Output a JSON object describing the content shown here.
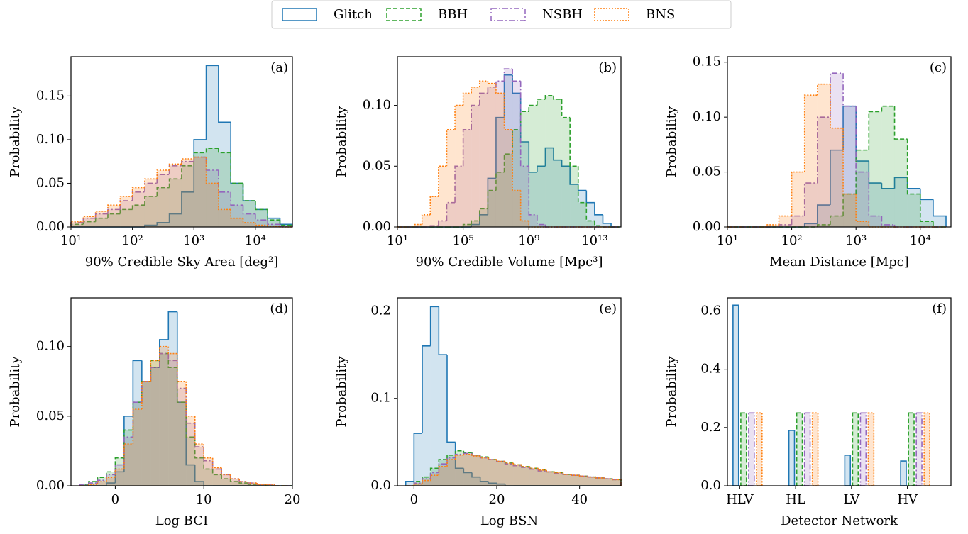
{
  "legend": {
    "entries": [
      {
        "name": "Glitch",
        "color": "#1f77b4",
        "linestyle": "solid"
      },
      {
        "name": "BBH",
        "color": "#2ca02c",
        "linestyle": "dashed"
      },
      {
        "name": "NSBH",
        "color": "#9467bd",
        "linestyle": "dashdot"
      },
      {
        "name": "BNS",
        "color": "#ff7f0e",
        "linestyle": "dotted"
      }
    ]
  },
  "chart_data": [
    {
      "type": "histogram",
      "label": "(a)",
      "xlabel": "90% Credible Sky Area [deg²]",
      "ylabel": "Probability",
      "xscale": "log",
      "bins": [
        10,
        15.85,
        25.12,
        39.81,
        63.1,
        100,
        158.5,
        251.2,
        398.1,
        631,
        1000,
        1585,
        2512,
        3981,
        6310,
        10000,
        15849,
        25119,
        39811
      ],
      "series": [
        {
          "values": [
            0,
            0,
            0,
            0,
            0,
            0,
            0.002,
            0.005,
            0.015,
            0.04,
            0.1,
            0.185,
            0.12,
            0.05,
            0.03,
            0.02,
            0.01,
            0.003
          ]
        },
        {
          "values": [
            0.003,
            0.006,
            0.01,
            0.015,
            0.02,
            0.025,
            0.035,
            0.045,
            0.055,
            0.07,
            0.085,
            0.09,
            0.085,
            0.05,
            0.03,
            0.02,
            0.008,
            0.002
          ]
        },
        {
          "values": [
            0.005,
            0.01,
            0.015,
            0.02,
            0.03,
            0.04,
            0.05,
            0.06,
            0.07,
            0.075,
            0.08,
            0.065,
            0.04,
            0.025,
            0.015,
            0.008,
            0.003,
            0.001
          ]
        },
        {
          "values": [
            0.006,
            0.012,
            0.018,
            0.025,
            0.035,
            0.045,
            0.055,
            0.065,
            0.072,
            0.078,
            0.08,
            0.05,
            0.02,
            0.01,
            0.005,
            0.002,
            0.001,
            0
          ]
        }
      ],
      "xlim": [
        10,
        40000
      ],
      "xticks": [
        {
          "value": 10,
          "label": "10¹"
        },
        {
          "value": 100,
          "label": "10²"
        },
        {
          "value": 1000,
          "label": "10³"
        },
        {
          "value": 10000,
          "label": "10⁴"
        }
      ],
      "ylim": [
        0,
        0.195
      ],
      "yticks": [
        {
          "value": 0,
          "label": "0.00"
        },
        0.05,
        {
          "value": 0.1,
          "label": "0.10"
        },
        0.15
      ]
    },
    {
      "type": "histogram",
      "label": "(b)",
      "xlabel": "90% Credible Volume [Mpc³]",
      "ylabel": "Probability",
      "xscale": "log",
      "bins": [
        10.0,
        31.62,
        100.0,
        316.2,
        1000.0,
        3162.0,
        10000.0,
        31620.0,
        100000.0,
        316200.0,
        1000000.0,
        3162000.0,
        10000000.0,
        31620000.0,
        100000000.0,
        316200000.0,
        1000000000.0,
        3162000000.0,
        10000000000.0,
        31620000000.0,
        100000000000.0,
        316200000000.0,
        1000000000000.0,
        3162000000000.0,
        10000000000000.0,
        31620000000000.0,
        100000000000000.0,
        316200000000000.0
      ],
      "series": [
        {
          "values": [
            0,
            0,
            0,
            0,
            0,
            0,
            0,
            0,
            0,
            0.002,
            0.01,
            0.04,
            0.09,
            0.125,
            0.11,
            0.07,
            0.045,
            0.05,
            0.065,
            0.055,
            0.05,
            0.035,
            0.03,
            0.02,
            0.01,
            0.003,
            0
          ]
        },
        {
          "values": [
            0,
            0,
            0,
            0,
            0,
            0,
            0,
            0,
            0.002,
            0.005,
            0.015,
            0.03,
            0.045,
            0.06,
            0.08,
            0.095,
            0.1,
            0.105,
            0.108,
            0.105,
            0.09,
            0.05,
            0.02,
            0.005,
            0.001,
            0,
            0
          ]
        },
        {
          "values": [
            0,
            0,
            0,
            0,
            0.001,
            0.005,
            0.02,
            0.05,
            0.08,
            0.1,
            0.11,
            0.115,
            0.12,
            0.13,
            0.12,
            0.05,
            0.01,
            0.002,
            0,
            0,
            0,
            0,
            0,
            0,
            0,
            0,
            0
          ]
        },
        {
          "values": [
            0,
            0,
            0.002,
            0.01,
            0.025,
            0.05,
            0.08,
            0.1,
            0.11,
            0.115,
            0.12,
            0.118,
            0.11,
            0.08,
            0.03,
            0.005,
            0,
            0,
            0,
            0,
            0,
            0,
            0,
            0,
            0,
            0,
            0
          ]
        }
      ],
      "xlim": [
        10,
        400000000000000.0
      ],
      "xticks": [
        {
          "value": 10,
          "label": "10¹"
        },
        {
          "value": 100000.0,
          "label": "10⁵"
        },
        {
          "value": 1000000000.0,
          "label": "10⁹"
        },
        {
          "value": 10000000000000.0,
          "label": "10¹³"
        }
      ],
      "ylim": [
        0,
        0.14
      ],
      "yticks": [
        {
          "value": 0,
          "label": "0.00"
        },
        0.05,
        {
          "value": 0.1,
          "label": "0.10"
        }
      ]
    },
    {
      "type": "histogram",
      "label": "(c)",
      "xlabel": "Mean Distance [Mpc]",
      "ylabel": "Probability",
      "xscale": "log",
      "bins": [
        10,
        15.85,
        25.12,
        39.81,
        63.1,
        100,
        158.5,
        251.2,
        398.1,
        631,
        1000,
        1585,
        2512,
        3981,
        6310,
        10000,
        15849,
        25119
      ],
      "series": [
        {
          "values": [
            0,
            0,
            0,
            0,
            0,
            0,
            0.003,
            0.02,
            0.07,
            0.11,
            0.06,
            0.04,
            0.035,
            0.045,
            0.035,
            0.025,
            0.01
          ]
        },
        {
          "values": [
            0,
            0,
            0,
            0,
            0,
            0,
            0,
            0.002,
            0.01,
            0.03,
            0.07,
            0.105,
            0.11,
            0.08,
            0.03,
            0.005,
            0
          ]
        },
        {
          "values": [
            0,
            0,
            0,
            0,
            0.002,
            0.01,
            0.04,
            0.1,
            0.14,
            0.11,
            0.05,
            0.01,
            0.002,
            0,
            0,
            0,
            0
          ]
        },
        {
          "values": [
            0,
            0,
            0,
            0.002,
            0.01,
            0.05,
            0.12,
            0.13,
            0.09,
            0.03,
            0.005,
            0,
            0,
            0,
            0,
            0,
            0
          ]
        }
      ],
      "xlim": [
        10,
        30000
      ],
      "xticks": [
        {
          "value": 10,
          "label": "10¹"
        },
        {
          "value": 100,
          "label": "10²"
        },
        {
          "value": 1000,
          "label": "10³"
        },
        {
          "value": 10000,
          "label": "10⁴"
        }
      ],
      "ylim": [
        0,
        0.155
      ],
      "yticks": [
        {
          "value": 0,
          "label": "0.00"
        },
        0.05,
        {
          "value": 0.1,
          "label": "0.10"
        },
        0.15
      ]
    },
    {
      "type": "histogram",
      "label": "(d)",
      "xlabel": "Log BCI",
      "ylabel": "Probability",
      "bins": [
        -4,
        -3,
        -2,
        -1,
        0,
        1,
        2,
        3,
        4,
        5,
        6,
        7,
        8,
        9,
        10,
        11,
        12,
        13,
        14,
        15,
        16,
        17,
        18,
        19,
        20
      ],
      "series": [
        {
          "values": [
            0,
            0,
            0,
            0.002,
            0.01,
            0.05,
            0.09,
            0.075,
            0.085,
            0.105,
            0.125,
            0.06,
            0.015,
            0.003,
            0,
            0,
            0,
            0,
            0,
            0,
            0,
            0,
            0,
            0
          ]
        },
        {
          "values": [
            0.001,
            0.003,
            0.006,
            0.01,
            0.02,
            0.04,
            0.06,
            0.075,
            0.09,
            0.095,
            0.085,
            0.06,
            0.035,
            0.02,
            0.012,
            0.008,
            0.005,
            0.003,
            0.002,
            0.001,
            0.001,
            0,
            0,
            0
          ]
        },
        {
          "values": [
            0.001,
            0.002,
            0.004,
            0.008,
            0.015,
            0.035,
            0.06,
            0.075,
            0.085,
            0.095,
            0.09,
            0.07,
            0.045,
            0.028,
            0.018,
            0.012,
            0.008,
            0.005,
            0.003,
            0.002,
            0.001,
            0.001,
            0,
            0
          ]
        },
        {
          "values": [
            0,
            0.001,
            0.003,
            0.006,
            0.012,
            0.03,
            0.055,
            0.075,
            0.09,
            0.1,
            0.095,
            0.075,
            0.05,
            0.03,
            0.02,
            0.013,
            0.008,
            0.005,
            0.003,
            0.002,
            0.001,
            0.001,
            0,
            0
          ]
        }
      ],
      "xlim": [
        -5,
        20
      ],
      "xticks": [
        0,
        10,
        20
      ],
      "ylim": [
        0,
        0.135
      ],
      "yticks": [
        {
          "value": 0,
          "label": "0.00"
        },
        0.05,
        {
          "value": 0.1,
          "label": "0.10"
        }
      ]
    },
    {
      "type": "histogram",
      "label": "(e)",
      "xlabel": "Log BSN",
      "ylabel": "Probability",
      "bins": [
        -2,
        0,
        2,
        4,
        6,
        8,
        10,
        12,
        14,
        16,
        18,
        20,
        22,
        24,
        26,
        28,
        30,
        32,
        34,
        36,
        38,
        40,
        42,
        44,
        46,
        48,
        50
      ],
      "series": [
        {
          "values": [
            0.005,
            0.06,
            0.16,
            0.205,
            0.15,
            0.05,
            0.02,
            0.015,
            0.01,
            0.005,
            0.003,
            0.002,
            0,
            0,
            0,
            0,
            0,
            0,
            0,
            0,
            0,
            0,
            0,
            0,
            0,
            0
          ]
        },
        {
          "values": [
            0,
            0.005,
            0.01,
            0.02,
            0.03,
            0.035,
            0.04,
            0.038,
            0.035,
            0.033,
            0.03,
            0.028,
            0.026,
            0.024,
            0.022,
            0.02,
            0.018,
            0.016,
            0.015,
            0.013,
            0.012,
            0.011,
            0.01,
            0.009,
            0.008,
            0.007
          ]
        },
        {
          "values": [
            0,
            0.003,
            0.008,
            0.015,
            0.025,
            0.032,
            0.036,
            0.037,
            0.035,
            0.032,
            0.03,
            0.028,
            0.025,
            0.023,
            0.021,
            0.019,
            0.017,
            0.016,
            0.014,
            0.013,
            0.012,
            0.011,
            0.01,
            0.009,
            0.008,
            0.007
          ]
        },
        {
          "values": [
            0,
            0.002,
            0.006,
            0.012,
            0.022,
            0.03,
            0.035,
            0.036,
            0.034,
            0.032,
            0.03,
            0.028,
            0.026,
            0.024,
            0.022,
            0.02,
            0.018,
            0.016,
            0.015,
            0.013,
            0.012,
            0.011,
            0.01,
            0.009,
            0.008,
            0.007
          ]
        }
      ],
      "xlim": [
        -4,
        50
      ],
      "xticks": [
        0,
        20,
        40
      ],
      "ylim": [
        0,
        0.215
      ],
      "yticks": [
        {
          "value": 0,
          "label": "0.0"
        },
        0.1,
        0.2
      ]
    },
    {
      "type": "bar",
      "label": "(f)",
      "xlabel": "Detector Network",
      "ylabel": "Probability",
      "categories": [
        "HLV",
        "HL",
        "LV",
        "HV"
      ],
      "series": [
        {
          "values": [
            0.62,
            0.19,
            0.105,
            0.085
          ]
        },
        {
          "values": [
            0.25,
            0.25,
            0.25,
            0.25
          ]
        },
        {
          "values": [
            0.25,
            0.25,
            0.25,
            0.25
          ]
        },
        {
          "values": [
            0.25,
            0.25,
            0.25,
            0.25
          ]
        }
      ],
      "ylim": [
        0,
        0.645
      ],
      "yticks": [
        {
          "value": 0,
          "label": "0.0"
        },
        0.2,
        0.4,
        0.6
      ]
    }
  ]
}
